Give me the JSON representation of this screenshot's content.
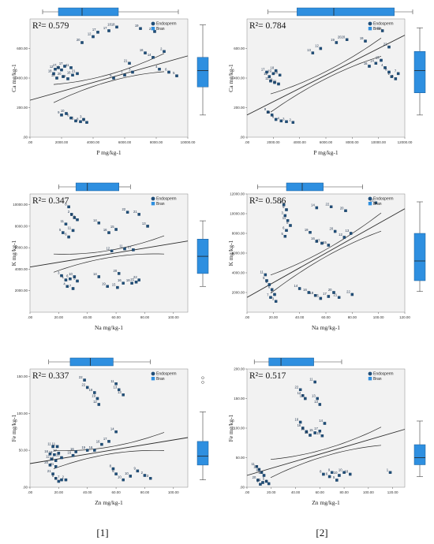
{
  "colors": {
    "point": "#1f4e79",
    "point_edge": "#123352",
    "box": "#2e8fe0",
    "box_edge": "#1b5a93",
    "plot_bg": "#f2f2f2",
    "line": "#2b2b2b"
  },
  "captions": [
    "[1]",
    "[2]"
  ],
  "legend_labels": [
    "Endosperm",
    "Bran"
  ],
  "chart_data": [
    {
      "type": "scatter",
      "ylabel": "Ca mg/kg-1",
      "xlabel": "P mg/kg-1",
      "r2": "R²= 0.579",
      "xlim": [
        0,
        10000
      ],
      "ylim": [
        0,
        800
      ],
      "xticks": [
        0,
        2000,
        4000,
        6000,
        8000,
        10000
      ],
      "xtick_labels": [
        ".00",
        "2000.00",
        "4000.00",
        "6000.00",
        "8000.00",
        "10000.00"
      ],
      "yticks": [
        0,
        200,
        400,
        600
      ],
      "ytick_labels": [
        ".00",
        "200.00",
        "400.00",
        "600.00"
      ],
      "fit": [
        250,
        0.03
      ],
      "box_x": [
        800,
        1800,
        3300,
        5600,
        9400
      ],
      "box_y": [
        150,
        340,
        450,
        540,
        760
      ],
      "points": [
        [
          1500,
          430,
          "18"
        ],
        [
          1600,
          460,
          "12"
        ],
        [
          1800,
          470,
          "17"
        ],
        [
          2000,
          455,
          "12"
        ],
        [
          2200,
          480,
          "17"
        ],
        [
          2600,
          470,
          "11"
        ],
        [
          1700,
          400,
          "19"
        ],
        [
          2100,
          410,
          "20"
        ],
        [
          2400,
          395,
          "12"
        ],
        [
          2700,
          420,
          "16"
        ],
        [
          3000,
          430,
          "21"
        ],
        [
          2000,
          150,
          "9"
        ],
        [
          2300,
          160,
          "10"
        ],
        [
          2600,
          130,
          "6"
        ],
        [
          2900,
          110,
          "5"
        ],
        [
          3200,
          105,
          "8"
        ],
        [
          3400,
          120,
          "3"
        ],
        [
          3600,
          100,
          "2"
        ],
        [
          3300,
          640,
          "20"
        ],
        [
          4000,
          680,
          "12"
        ],
        [
          4300,
          710,
          "17"
        ],
        [
          5000,
          720,
          "17"
        ],
        [
          5500,
          745,
          "1818"
        ],
        [
          6300,
          500,
          "21"
        ],
        [
          7300,
          570,
          "16"
        ],
        [
          7800,
          540,
          "14"
        ],
        [
          8500,
          580,
          "2"
        ],
        [
          8200,
          460,
          "4"
        ],
        [
          8800,
          440,
          "6"
        ],
        [
          9300,
          415,
          "5"
        ],
        [
          7000,
          735,
          "19"
        ],
        [
          7900,
          715,
          "23"
        ],
        [
          5300,
          400,
          "5"
        ],
        [
          6000,
          420,
          "7"
        ],
        [
          6500,
          440,
          "3"
        ]
      ]
    },
    {
      "type": "scatter",
      "ylabel": "Ca mg/kg-1",
      "xlabel": "P mg/kg-1",
      "r2": "R²= 0.784",
      "xlim": [
        0,
        12000
      ],
      "ylim": [
        0,
        800
      ],
      "xticks": [
        0,
        2000,
        4000,
        6000,
        8000,
        10000,
        12000
      ],
      "xtick_labels": [
        ".00",
        "2000.00",
        "4000.00",
        "6000.00",
        "8000.00",
        "10000.00",
        "12000.00"
      ],
      "yticks": [
        0,
        200,
        400,
        600
      ],
      "ytick_labels": [
        ".00",
        "200.00",
        "400.00",
        "600.00"
      ],
      "fit": [
        150,
        0.045
      ],
      "box_x": [
        1600,
        3800,
        6600,
        11200,
        13800
      ],
      "box_y": [
        150,
        300,
        450,
        580,
        740
      ],
      "points": [
        [
          1500,
          440,
          "17"
        ],
        [
          1700,
          410,
          "12"
        ],
        [
          2000,
          430,
          "19"
        ],
        [
          2200,
          450,
          "18"
        ],
        [
          2500,
          420,
          "20"
        ],
        [
          1800,
          380,
          "11"
        ],
        [
          2100,
          370,
          "16"
        ],
        [
          2400,
          360,
          "21"
        ],
        [
          1600,
          170,
          "9"
        ],
        [
          1900,
          150,
          "10"
        ],
        [
          2200,
          120,
          "6"
        ],
        [
          2600,
          110,
          "4"
        ],
        [
          3000,
          105,
          "3"
        ],
        [
          3500,
          100,
          "2"
        ],
        [
          5000,
          570,
          "13"
        ],
        [
          5600,
          600,
          "12"
        ],
        [
          6800,
          640,
          "19"
        ],
        [
          7600,
          660,
          "2020"
        ],
        [
          9000,
          650,
          "19"
        ],
        [
          10300,
          720,
          "21"
        ],
        [
          10800,
          610,
          "22"
        ],
        [
          9300,
          480,
          "16"
        ],
        [
          9800,
          500,
          "14"
        ],
        [
          10200,
          520,
          "13"
        ],
        [
          10500,
          470,
          "4"
        ],
        [
          10800,
          440,
          "8"
        ],
        [
          11000,
          410,
          "1"
        ],
        [
          11300,
          395,
          "5"
        ],
        [
          11500,
          430,
          "7"
        ]
      ]
    },
    {
      "type": "scatter",
      "ylabel": "K mg/kg-1",
      "xlabel": "Na mg/kg-1",
      "r2": "R²= 0.347",
      "xlim": [
        0,
        110
      ],
      "ylim": [
        0,
        11000
      ],
      "xticks": [
        0,
        20,
        40,
        60,
        80,
        100
      ],
      "xtick_labels": [
        ".00",
        "20.00",
        "40.00",
        "60.00",
        "80.00",
        "100.00"
      ],
      "yticks": [
        2000,
        4000,
        6000,
        8000,
        10000
      ],
      "ytick_labels": [
        "2000.00",
        "4000.00",
        "6000.00",
        "8000.00",
        "10000.00"
      ],
      "fit": [
        4200,
        22
      ],
      "box_x": [
        20,
        32,
        40,
        62,
        70
      ],
      "box_y": [
        2400,
        3600,
        5200,
        6800,
        8500
      ],
      "points": [
        [
          27,
          9800,
          "8"
        ],
        [
          29,
          9100,
          "2"
        ],
        [
          31,
          8800,
          "3"
        ],
        [
          25,
          8200,
          "11"
        ],
        [
          23,
          7400,
          "5"
        ],
        [
          27,
          7000,
          "6"
        ],
        [
          30,
          7600,
          "11"
        ],
        [
          33,
          8600,
          "9"
        ],
        [
          22,
          3400,
          "3"
        ],
        [
          25,
          3000,
          "1"
        ],
        [
          28,
          3100,
          "6"
        ],
        [
          31,
          3300,
          "10"
        ],
        [
          26,
          2400,
          "4"
        ],
        [
          30,
          2200,
          "7"
        ],
        [
          33,
          2900,
          "5"
        ],
        [
          48,
          8300,
          "14"
        ],
        [
          55,
          7400,
          "16"
        ],
        [
          60,
          7700,
          "15"
        ],
        [
          68,
          9300,
          "22"
        ],
        [
          76,
          9100,
          "21"
        ],
        [
          82,
          8000,
          "13"
        ],
        [
          57,
          5700,
          "12"
        ],
        [
          66,
          5900,
          "11"
        ],
        [
          72,
          5800,
          "17"
        ],
        [
          54,
          2400,
          "19"
        ],
        [
          61,
          2300,
          "15"
        ],
        [
          65,
          2700,
          "16"
        ],
        [
          71,
          2700,
          "18"
        ],
        [
          62,
          3600,
          "20"
        ],
        [
          74,
          2800,
          "21"
        ],
        [
          76,
          3000,
          "22"
        ],
        [
          48,
          3300,
          "14"
        ]
      ]
    },
    {
      "type": "scatter",
      "ylabel": "K mg/kg-1",
      "xlabel": "Na mg/kg-1",
      "r2": "R²= 0.586",
      "xlim": [
        0,
        120
      ],
      "ylim": [
        0,
        12000
      ],
      "xticks": [
        0,
        20,
        40,
        60,
        80,
        100,
        120
      ],
      "xtick_labels": [
        ".00",
        "20.00",
        "40.00",
        "60.00",
        "80.00",
        "100.00",
        "120.00"
      ],
      "yticks": [
        2000,
        4000,
        6000,
        8000,
        10000,
        12000
      ],
      "ytick_labels": [
        "2000.00",
        "4000.00",
        "6000.00",
        "8000.00",
        "10000.00",
        "12000.00"
      ],
      "fit": [
        1500,
        75
      ],
      "box_x": [
        8,
        30,
        42,
        58,
        88
      ],
      "box_y": [
        2100,
        3200,
        5200,
        8000,
        11200
      ],
      "points": [
        [
          14,
          3800,
          "11"
        ],
        [
          15,
          3200,
          "5"
        ],
        [
          17,
          2800,
          "1"
        ],
        [
          19,
          2300,
          "6"
        ],
        [
          21,
          1800,
          "4"
        ],
        [
          18,
          1500,
          "7"
        ],
        [
          22,
          1100,
          "3"
        ],
        [
          28,
          10900,
          "2"
        ],
        [
          30,
          10400,
          "9"
        ],
        [
          29,
          9800,
          "3"
        ],
        [
          31,
          9300,
          "11"
        ],
        [
          33,
          8800,
          "8"
        ],
        [
          30,
          8300,
          "6"
        ],
        [
          29,
          7700,
          "5"
        ],
        [
          40,
          2400,
          "14"
        ],
        [
          47,
          2000,
          "16"
        ],
        [
          52,
          1700,
          "18"
        ],
        [
          56,
          1400,
          "15"
        ],
        [
          62,
          1600,
          "17"
        ],
        [
          66,
          2000,
          "20"
        ],
        [
          70,
          1500,
          "21"
        ],
        [
          80,
          1800,
          "22"
        ],
        [
          48,
          8100,
          "19"
        ],
        [
          53,
          7200,
          "16"
        ],
        [
          57,
          7000,
          "17"
        ],
        [
          62,
          6800,
          "15"
        ],
        [
          67,
          8200,
          "20"
        ],
        [
          74,
          7600,
          "12"
        ],
        [
          79,
          8000,
          "13"
        ],
        [
          53,
          10600,
          "14"
        ],
        [
          64,
          10700,
          "22"
        ],
        [
          75,
          10300,
          "20"
        ],
        [
          98,
          11100,
          "21"
        ]
      ]
    },
    {
      "type": "scatter",
      "ylabel": "Fe mg/kg-1",
      "xlabel": "Zn mg/kg-1",
      "r2": "R²= 0.337",
      "xlim": [
        0,
        110
      ],
      "ylim": [
        0,
        160
      ],
      "xticks": [
        0,
        20,
        40,
        60,
        80,
        100
      ],
      "xtick_labels": [
        ".00",
        "20.00",
        "40.00",
        "60.00",
        "80.00",
        "100.00"
      ],
      "yticks": [
        0,
        50,
        100,
        150
      ],
      "ytick_labels": [
        ".00",
        "50.00",
        "100.00",
        "150.00"
      ],
      "fit": [
        32,
        0.32
      ],
      "box_x": [
        13,
        28,
        42,
        58,
        84
      ],
      "box_y": [
        10,
        30,
        42,
        62,
        102
      ],
      "outliers": [
        148,
        142
      ],
      "points": [
        [
          16,
          55,
          "11"
        ],
        [
          19,
          55,
          "11"
        ],
        [
          14,
          45,
          "16"
        ],
        [
          17,
          44,
          "18"
        ],
        [
          20,
          46,
          "17"
        ],
        [
          22,
          40,
          "13"
        ],
        [
          15,
          38,
          "12"
        ],
        [
          18,
          36,
          "19"
        ],
        [
          14,
          30,
          "20"
        ],
        [
          18,
          28,
          "21"
        ],
        [
          16,
          18,
          "21"
        ],
        [
          18,
          12,
          "5"
        ],
        [
          20,
          8,
          "4"
        ],
        [
          22,
          10,
          "7"
        ],
        [
          25,
          10,
          "2"
        ],
        [
          38,
          145,
          "22"
        ],
        [
          40,
          135,
          "22"
        ],
        [
          45,
          128,
          "18"
        ],
        [
          47,
          120,
          "19"
        ],
        [
          48,
          112,
          "12"
        ],
        [
          60,
          140,
          "11"
        ],
        [
          62,
          132,
          "13"
        ],
        [
          65,
          125,
          "13"
        ],
        [
          60,
          75,
          "14"
        ],
        [
          55,
          62,
          "17"
        ],
        [
          50,
          58,
          "16"
        ],
        [
          45,
          50,
          "16"
        ],
        [
          40,
          50,
          "15"
        ],
        [
          32,
          48,
          "16"
        ],
        [
          30,
          43,
          "16"
        ],
        [
          58,
          25,
          "8"
        ],
        [
          60,
          18,
          "6"
        ],
        [
          65,
          10,
          "10"
        ],
        [
          70,
          15,
          "10"
        ],
        [
          75,
          22,
          "9"
        ],
        [
          80,
          16,
          "2"
        ],
        [
          84,
          12,
          "3"
        ]
      ]
    },
    {
      "type": "scatter",
      "ylabel": "Fe mg/kg-1",
      "xlabel": "Zn mg/kg-1",
      "r2": "R²= 0.517",
      "xlim": [
        0,
        130
      ],
      "ylim": [
        0,
        200
      ],
      "xticks": [
        0,
        20,
        40,
        60,
        80,
        100,
        120
      ],
      "xtick_labels": [
        ".00",
        "20.00",
        "40.00",
        "60.00",
        "80.00",
        "100.00",
        "120.00"
      ],
      "yticks": [
        0,
        50,
        100,
        150,
        200
      ],
      "ytick_labels": [
        ".00",
        "50.00",
        "100.00",
        "150.00",
        "200.00"
      ],
      "fit": [
        20,
        0.6
      ],
      "box_x": [
        6,
        18,
        28,
        55,
        78
      ],
      "box_y": [
        18,
        38,
        50,
        72,
        112
      ],
      "points": [
        [
          8,
          35,
          "11"
        ],
        [
          10,
          30,
          "16"
        ],
        [
          12,
          25,
          "18"
        ],
        [
          14,
          20,
          "17"
        ],
        [
          9,
          12,
          "20"
        ],
        [
          13,
          8,
          "21"
        ],
        [
          16,
          10,
          "5"
        ],
        [
          18,
          6,
          "4"
        ],
        [
          11,
          5,
          "7"
        ],
        [
          44,
          165,
          "22"
        ],
        [
          46,
          155,
          "12"
        ],
        [
          48,
          150,
          "12"
        ],
        [
          56,
          178,
          "11"
        ],
        [
          58,
          150,
          "13"
        ],
        [
          60,
          140,
          "13"
        ],
        [
          44,
          110,
          "16"
        ],
        [
          46,
          100,
          "16"
        ],
        [
          49,
          94,
          "16"
        ],
        [
          52,
          88,
          "15"
        ],
        [
          56,
          92,
          "15"
        ],
        [
          60,
          95,
          "17"
        ],
        [
          64,
          108,
          "14"
        ],
        [
          62,
          87,
          "14"
        ],
        [
          63,
          22,
          "8"
        ],
        [
          70,
          25,
          "9"
        ],
        [
          76,
          20,
          "10"
        ],
        [
          80,
          25,
          "10"
        ],
        [
          85,
          22,
          "18"
        ],
        [
          68,
          18,
          "6"
        ],
        [
          74,
          12,
          "5"
        ],
        [
          118,
          25,
          "1"
        ]
      ]
    }
  ]
}
